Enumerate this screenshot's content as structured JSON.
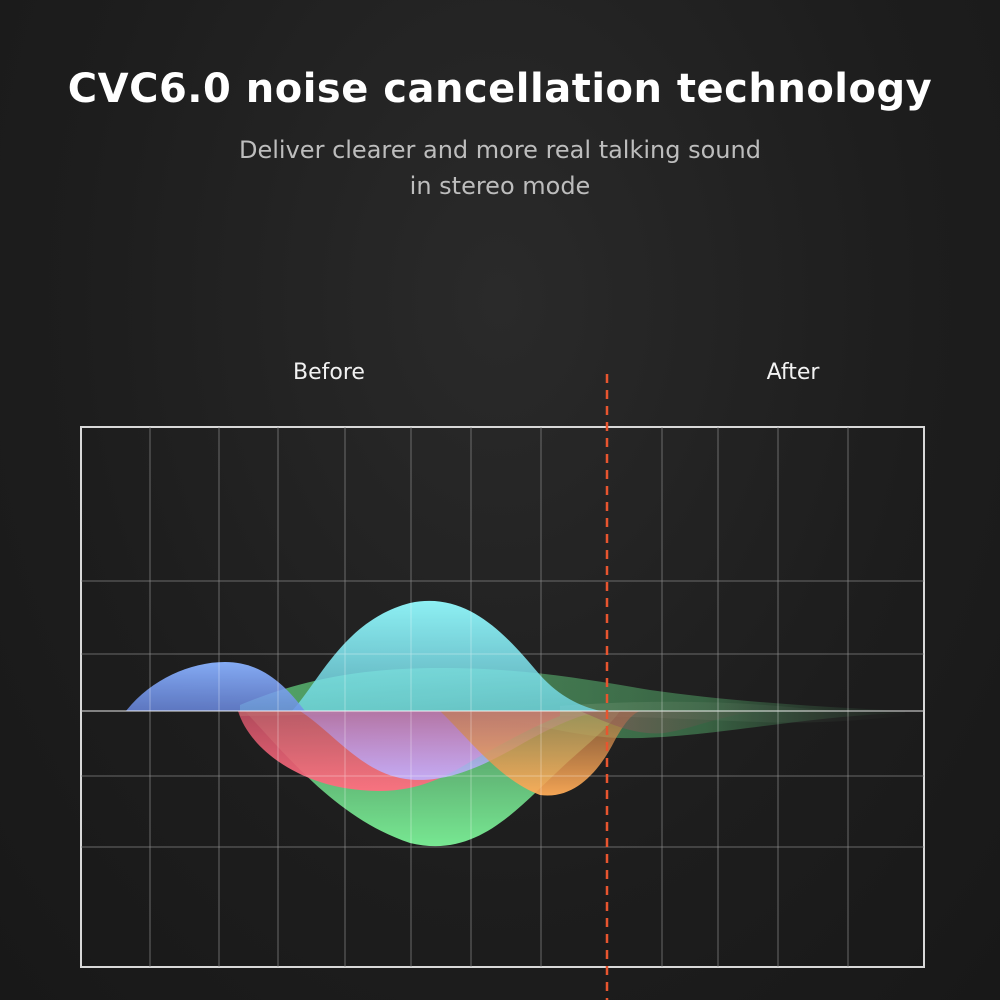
{
  "headline": "CVC6.0 noise cancellation technology",
  "subheadline": {
    "line1": "Deliver clearer and more real talking sound",
    "line2": "in stereo mode"
  },
  "comparison": {
    "before_label": "Before",
    "after_label": "After"
  },
  "colors": {
    "divider": "#e8552f",
    "grid": "#8a8a8a",
    "frame": "#d8d8d8",
    "wave_cyan": "#7ef2f6",
    "wave_blue": "#6f9bff",
    "wave_green": "#6bf08a",
    "wave_red": "#ff5a6e",
    "wave_orange": "#ffa040",
    "wave_purple": "#a99bff"
  }
}
